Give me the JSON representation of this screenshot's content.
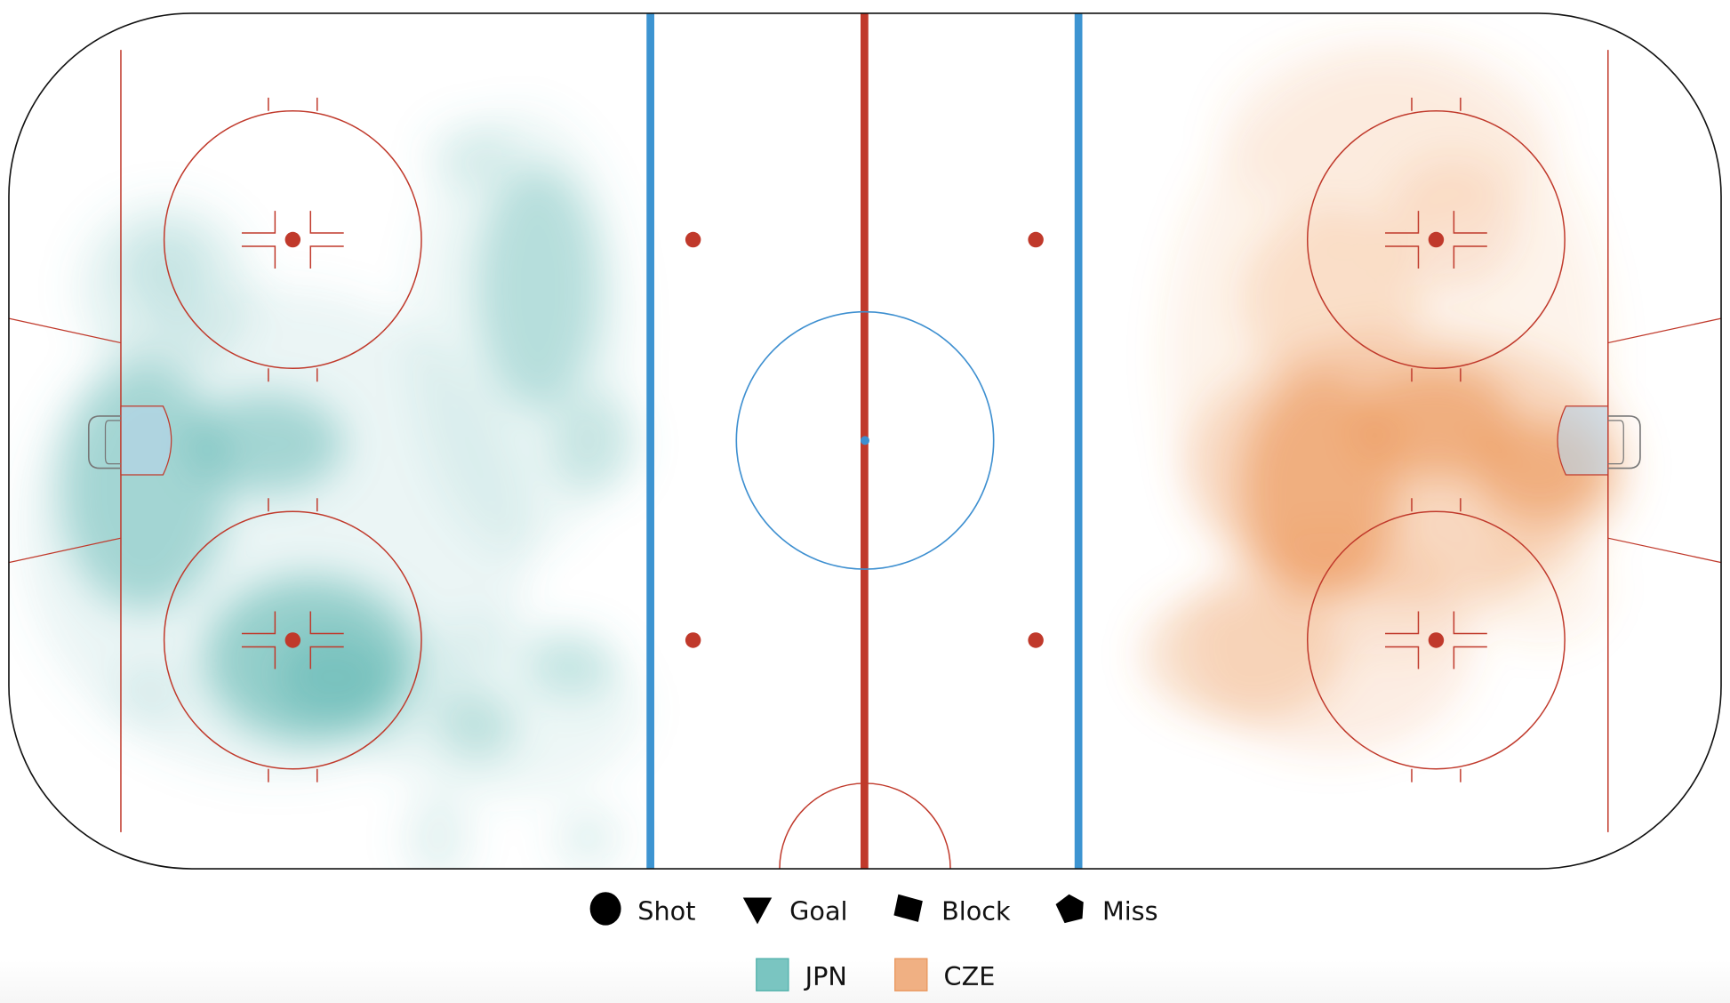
{
  "chart_data": {
    "type": "heatmap",
    "title": "",
    "description_labels": [],
    "shot_type_legend": [
      {
        "label": "Shot",
        "symbol": "circle"
      },
      {
        "label": "Goal",
        "symbol": "triangle-down"
      },
      {
        "label": "Block",
        "symbol": "square"
      },
      {
        "label": "Miss",
        "symbol": "pentagon"
      }
    ],
    "teams": [
      {
        "label": "JPN",
        "color": "#7ac5c1",
        "side": "left"
      },
      {
        "label": "CZE",
        "color": "#f0b083",
        "side": "right"
      }
    ],
    "rink_colors": {
      "blue_line": "#3d94d1",
      "red_line": "#c0392b",
      "center_circle": "#3d8fd0"
    }
  }
}
